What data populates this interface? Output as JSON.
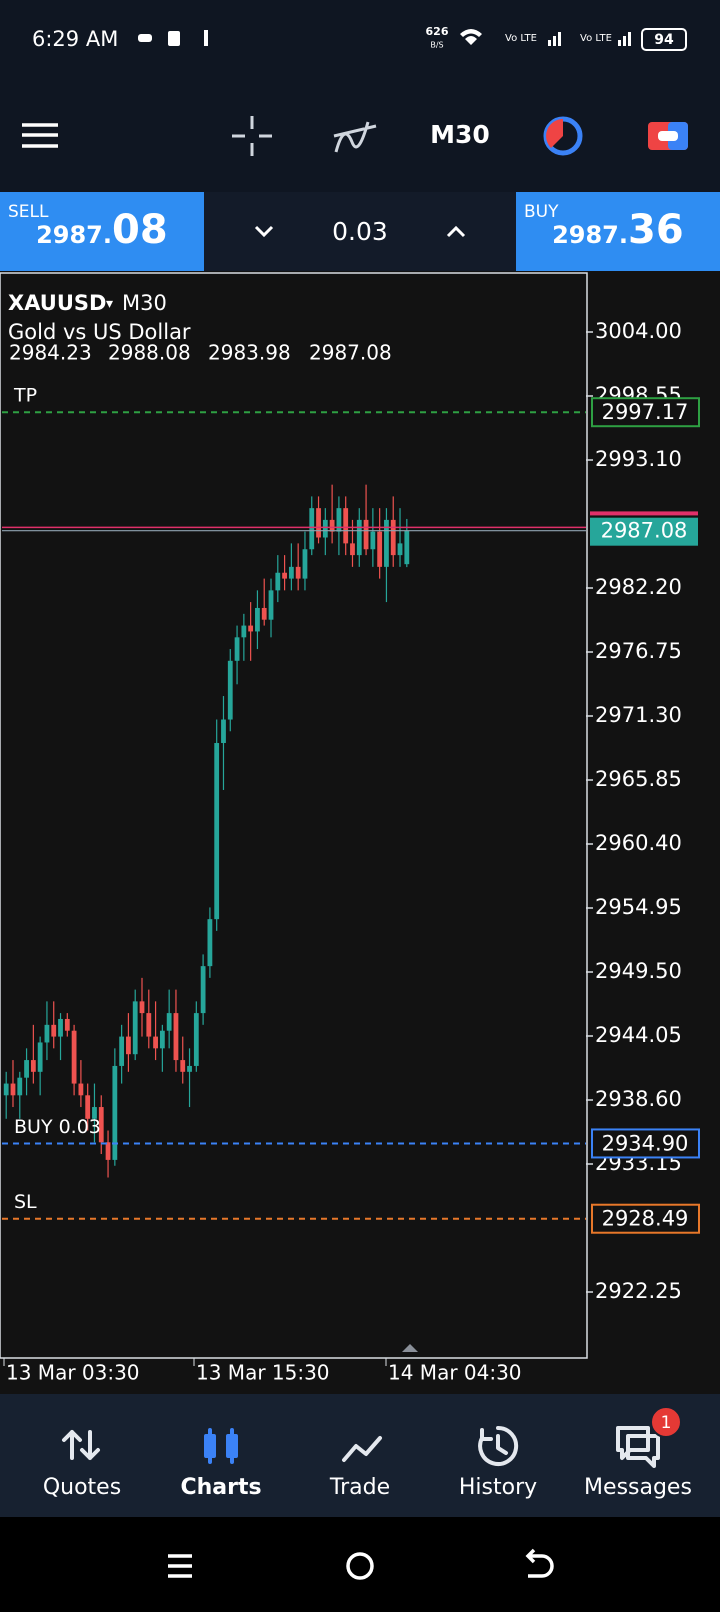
{
  "status_bar": {
    "time": "6:29 AM",
    "net_speed": "626",
    "net_unit": "B/S",
    "battery": "94"
  },
  "toolbar": {
    "timeframe": "M30"
  },
  "trade_panel": {
    "sell_label": "SELL",
    "sell_price_main": "2987.",
    "sell_price_big": "08",
    "volume": "0.03",
    "buy_label": "BUY",
    "buy_price_main": "2987.",
    "buy_price_big": "36"
  },
  "chart": {
    "type": "candlestick",
    "symbol": "XAUUSD",
    "timeframe": "M30",
    "description": "Gold vs US Dollar",
    "up_color": "#26a69a",
    "down_color": "#ef5350",
    "ylim": [
      2918.2,
      3004.9
    ],
    "yticks": [
      {
        "value": 3004,
        "label": "3004.00"
      },
      {
        "value": 2998.55,
        "label": "2998.55"
      },
      {
        "value": 2993.1,
        "label": "2993.10"
      },
      {
        "value": 2982.2,
        "label": "2982.20"
      },
      {
        "value": 2976.75,
        "label": "2976.75"
      },
      {
        "value": 2971.3,
        "label": "2971.30"
      },
      {
        "value": 2965.85,
        "label": "2965.85"
      },
      {
        "value": 2960.4,
        "label": "2960.40"
      },
      {
        "value": 2954.95,
        "label": "2954.95"
      },
      {
        "value": 2949.5,
        "label": "2949.50"
      },
      {
        "value": 2944.05,
        "label": "2944.05"
      },
      {
        "value": 2938.6,
        "label": "2938.60"
      },
      {
        "value": 2933.15,
        "label": "2933.15"
      },
      {
        "value": 2922.25,
        "label": "2922.25"
      }
    ],
    "time_labels": [
      "13 Mar 03:30",
      "13 Mar 15:30",
      "14 Mar 04:30"
    ],
    "ask": 2987.36,
    "ask_color": "#e0306a",
    "levels": [
      {
        "label": "TP",
        "value": 2997.17,
        "color": "#2ea043"
      },
      {
        "label": "BUY 0.03",
        "value": 2934.9,
        "value_label": "2934.90",
        "color": "#3b82f6"
      },
      {
        "label": "SL",
        "value": 2928.49,
        "color": "#e8782a"
      }
    ],
    "candles": [
      [
        2939,
        2941,
        2937,
        2940
      ],
      [
        2940,
        2942,
        2938,
        2939
      ],
      [
        2939,
        2941,
        2937,
        2940.5
      ],
      [
        2940.5,
        2943,
        2939,
        2942
      ],
      [
        2942,
        2945,
        2940,
        2941
      ],
      [
        2941,
        2944,
        2939,
        2943.5
      ],
      [
        2943.5,
        2947,
        2942,
        2945
      ],
      [
        2945,
        2947,
        2943,
        2944
      ],
      [
        2944,
        2946,
        2942,
        2945.5
      ],
      [
        2945.5,
        2946,
        2944,
        2944.5
      ],
      [
        2944.5,
        2945,
        2939,
        2940
      ],
      [
        2940,
        2942,
        2938,
        2939
      ],
      [
        2939,
        2940,
        2936,
        2937
      ],
      [
        2937,
        2940,
        2935,
        2938
      ],
      [
        2938,
        2939,
        2934,
        2935
      ],
      [
        2935,
        2936,
        2932,
        2933.5
      ],
      [
        2933.5,
        2943,
        2933,
        2941.5
      ],
      [
        2941.5,
        2945,
        2940,
        2944
      ],
      [
        2944,
        2946,
        2941,
        2942.5
      ],
      [
        2942.5,
        2948,
        2942,
        2947
      ],
      [
        2947,
        2949,
        2944,
        2946
      ],
      [
        2946,
        2948,
        2943,
        2944
      ],
      [
        2944,
        2947,
        2942,
        2943
      ],
      [
        2943,
        2945,
        2941,
        2944.5
      ],
      [
        2944.5,
        2948,
        2943,
        2946
      ],
      [
        2946,
        2948,
        2941,
        2942
      ],
      [
        2942,
        2944,
        2940,
        2941
      ],
      [
        2941,
        2943,
        2938,
        2941.5
      ],
      [
        2941.5,
        2947,
        2941,
        2946
      ],
      [
        2946,
        2951,
        2945,
        2950
      ],
      [
        2950,
        2955,
        2949,
        2954
      ],
      [
        2954,
        2971,
        2953,
        2969
      ],
      [
        2969,
        2973,
        2965,
        2971
      ],
      [
        2971,
        2977,
        2970,
        2976
      ],
      [
        2976,
        2979,
        2974,
        2978
      ],
      [
        2978,
        2980,
        2976,
        2979
      ],
      [
        2979,
        2981,
        2976,
        2978.5
      ],
      [
        2978.5,
        2982,
        2977,
        2980.5
      ],
      [
        2980.5,
        2983,
        2979,
        2979.5
      ],
      [
        2979.5,
        2983,
        2978,
        2982
      ],
      [
        2982,
        2985,
        2981,
        2983.5
      ],
      [
        2983.5,
        2985,
        2982,
        2983
      ],
      [
        2983,
        2986,
        2982,
        2984
      ],
      [
        2984,
        2986,
        2982,
        2983
      ],
      [
        2983,
        2987,
        2982,
        2985.5
      ],
      [
        2985.5,
        2990,
        2985,
        2989
      ],
      [
        2989,
        2990,
        2986,
        2986.5
      ],
      [
        2986.5,
        2989,
        2985,
        2988
      ],
      [
        2988,
        2991,
        2986,
        2987
      ],
      [
        2987,
        2990,
        2985,
        2989
      ],
      [
        2989,
        2990,
        2985,
        2986
      ],
      [
        2986,
        2988,
        2984,
        2985
      ],
      [
        2985,
        2989,
        2984,
        2988
      ],
      [
        2988,
        2991,
        2985,
        2985.5
      ],
      [
        2985.5,
        2989,
        2984,
        2987
      ],
      [
        2987,
        2989,
        2983,
        2984
      ],
      [
        2984,
        2989,
        2981,
        2988
      ],
      [
        2988,
        2990,
        2984,
        2985
      ],
      [
        2985,
        2989,
        2984,
        2986
      ],
      [
        2984.23,
        2988.08,
        2983.98,
        2987.08
      ]
    ]
  },
  "bottom_nav": {
    "items": [
      "Quotes",
      "Charts",
      "Trade",
      "History",
      "Messages"
    ],
    "badge": "1"
  }
}
